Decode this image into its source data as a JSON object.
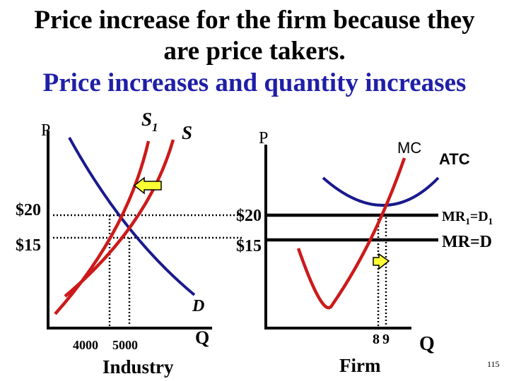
{
  "title": {
    "line1": "Price increase for the firm because they",
    "line2": "are price takers.",
    "line3": "Price increases and quantity increases"
  },
  "industry": {
    "p_axis": "P",
    "q_axis": "Q",
    "s1": "S",
    "s1_sub": "1",
    "s": "S",
    "d": "D",
    "price_high": "$20",
    "price_low": "$15",
    "qty_low": "4000",
    "qty_high": "5000",
    "caption": "Industry"
  },
  "firm": {
    "p_axis": "P",
    "q_axis": "Q",
    "mc": "MC",
    "atc": "ATC",
    "price_high": "$20",
    "price_low": "$15",
    "mr1_a": "MR",
    "mr1_sub1": "1",
    "mr1_b": "=D",
    "mr1_sub2": "1",
    "mr": "MR=D",
    "qty_low": "8",
    "qty_high": "9",
    "caption": "Firm"
  },
  "slide_number": "115",
  "colors": {
    "supply": "#cc1a1a",
    "demand": "#1a1a8c",
    "arrow_fill": "#ffff33",
    "title_blue": "#1f1fa8"
  }
}
